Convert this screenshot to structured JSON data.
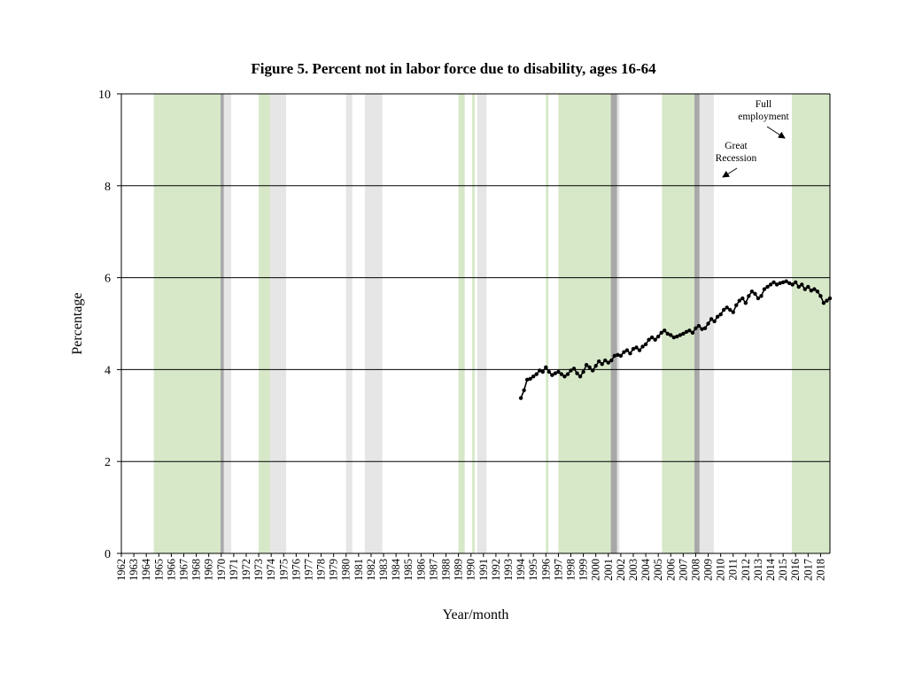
{
  "chart_data": {
    "type": "line",
    "title": "Figure 5. Percent not in labor force due to disability, ages 16-64",
    "xlabel": "Year/month",
    "ylabel": "Percentage",
    "ylim": [
      0,
      10
    ],
    "xlim": [
      1962,
      2018.75
    ],
    "y_ticks": [
      "0",
      "2",
      "4",
      "6",
      "8",
      "10"
    ],
    "x_tick_labels": [
      "1962",
      "1963",
      "1964",
      "1965",
      "1966",
      "1967",
      "1968",
      "1969",
      "1970",
      "1971",
      "1972",
      "1973",
      "1974",
      "1975",
      "1976",
      "1977",
      "1978",
      "1979",
      "1980",
      "1981",
      "1982",
      "1983",
      "1984",
      "1985",
      "1986",
      "1987",
      "1988",
      "1989",
      "1990",
      "1991",
      "1992",
      "1993",
      "1994",
      "1995",
      "1996",
      "1997",
      "1998",
      "1999",
      "2000",
      "2001",
      "2002",
      "2003",
      "2004",
      "2005",
      "2006",
      "2007",
      "2008",
      "2009",
      "2010",
      "2011",
      "2012",
      "2013",
      "2014",
      "2015",
      "2016",
      "2017",
      "2018"
    ],
    "grid": true,
    "legend": "none",
    "shaded_periods": {
      "full_employment": [
        [
          1964.6,
          1970.2
        ],
        [
          1973.0,
          1974.2
        ],
        [
          1989.0,
          1989.5
        ],
        [
          1990.1,
          1990.3
        ],
        [
          1996.0,
          1996.2
        ],
        [
          1997.0,
          2001.2
        ],
        [
          2005.3,
          2008.0
        ],
        [
          2015.7,
          2018.75
        ]
      ],
      "recession": [
        [
          1969.95,
          1970.8
        ],
        [
          1973.9,
          1975.2
        ],
        [
          1980.0,
          1980.5
        ],
        [
          1981.5,
          1982.9
        ],
        [
          1990.5,
          1991.25
        ],
        [
          2001.2,
          2001.9
        ],
        [
          2007.9,
          2009.45
        ]
      ],
      "overlap": [
        [
          1969.95,
          1970.2
        ],
        [
          2001.2,
          2001.7
        ],
        [
          2007.9,
          2008.3
        ]
      ]
    },
    "series": [
      {
        "points": [
          [
            1994.0,
            3.38
          ],
          [
            1994.25,
            3.55
          ],
          [
            1994.5,
            3.78
          ],
          [
            1994.75,
            3.8
          ],
          [
            1995.0,
            3.85
          ],
          [
            1995.25,
            3.9
          ],
          [
            1995.5,
            3.98
          ],
          [
            1995.75,
            3.95
          ],
          [
            1996.0,
            4.05
          ],
          [
            1996.25,
            3.95
          ],
          [
            1996.5,
            3.88
          ],
          [
            1996.75,
            3.92
          ],
          [
            1997.0,
            3.95
          ],
          [
            1997.25,
            3.9
          ],
          [
            1997.5,
            3.85
          ],
          [
            1997.75,
            3.9
          ],
          [
            1998.0,
            3.98
          ],
          [
            1998.25,
            4.02
          ],
          [
            1998.5,
            3.92
          ],
          [
            1998.75,
            3.85
          ],
          [
            1999.0,
            3.95
          ],
          [
            1999.25,
            4.1
          ],
          [
            1999.5,
            4.05
          ],
          [
            1999.75,
            3.98
          ],
          [
            2000.0,
            4.08
          ],
          [
            2000.25,
            4.18
          ],
          [
            2000.5,
            4.12
          ],
          [
            2000.75,
            4.2
          ],
          [
            2001.0,
            4.15
          ],
          [
            2001.25,
            4.2
          ],
          [
            2001.5,
            4.3
          ],
          [
            2001.75,
            4.32
          ],
          [
            2002.0,
            4.3
          ],
          [
            2002.25,
            4.38
          ],
          [
            2002.5,
            4.42
          ],
          [
            2002.75,
            4.35
          ],
          [
            2003.0,
            4.45
          ],
          [
            2003.25,
            4.48
          ],
          [
            2003.5,
            4.42
          ],
          [
            2003.75,
            4.5
          ],
          [
            2004.0,
            4.55
          ],
          [
            2004.25,
            4.65
          ],
          [
            2004.5,
            4.7
          ],
          [
            2004.75,
            4.65
          ],
          [
            2005.0,
            4.72
          ],
          [
            2005.25,
            4.8
          ],
          [
            2005.5,
            4.85
          ],
          [
            2005.75,
            4.78
          ],
          [
            2006.0,
            4.75
          ],
          [
            2006.25,
            4.7
          ],
          [
            2006.5,
            4.72
          ],
          [
            2006.75,
            4.75
          ],
          [
            2007.0,
            4.78
          ],
          [
            2007.25,
            4.82
          ],
          [
            2007.5,
            4.85
          ],
          [
            2007.75,
            4.8
          ],
          [
            2008.0,
            4.9
          ],
          [
            2008.25,
            4.95
          ],
          [
            2008.5,
            4.88
          ],
          [
            2008.75,
            4.9
          ],
          [
            2009.0,
            5.0
          ],
          [
            2009.25,
            5.1
          ],
          [
            2009.5,
            5.05
          ],
          [
            2009.75,
            5.15
          ],
          [
            2010.0,
            5.2
          ],
          [
            2010.25,
            5.3
          ],
          [
            2010.5,
            5.35
          ],
          [
            2010.75,
            5.3
          ],
          [
            2011.0,
            5.25
          ],
          [
            2011.25,
            5.4
          ],
          [
            2011.5,
            5.5
          ],
          [
            2011.75,
            5.55
          ],
          [
            2012.0,
            5.45
          ],
          [
            2012.25,
            5.6
          ],
          [
            2012.5,
            5.7
          ],
          [
            2012.75,
            5.65
          ],
          [
            2013.0,
            5.55
          ],
          [
            2013.25,
            5.6
          ],
          [
            2013.5,
            5.75
          ],
          [
            2013.75,
            5.8
          ],
          [
            2014.0,
            5.85
          ],
          [
            2014.25,
            5.9
          ],
          [
            2014.5,
            5.85
          ],
          [
            2014.75,
            5.88
          ],
          [
            2015.0,
            5.9
          ],
          [
            2015.25,
            5.92
          ],
          [
            2015.5,
            5.88
          ],
          [
            2015.75,
            5.85
          ],
          [
            2016.0,
            5.9
          ],
          [
            2016.25,
            5.8
          ],
          [
            2016.5,
            5.85
          ],
          [
            2016.75,
            5.75
          ],
          [
            2017.0,
            5.8
          ],
          [
            2017.25,
            5.72
          ],
          [
            2017.5,
            5.75
          ],
          [
            2017.75,
            5.7
          ],
          [
            2018.0,
            5.6
          ],
          [
            2018.25,
            5.45
          ],
          [
            2018.5,
            5.5
          ],
          [
            2018.75,
            5.55
          ]
        ]
      }
    ],
    "annotations": [
      {
        "lines": [
          "Full",
          "employment"
        ]
      },
      {
        "lines": [
          "Great",
          "Recession"
        ]
      }
    ]
  },
  "colors": {
    "full_employment": "#d6e8c8",
    "recession": "#e6e6e6",
    "overlap": "#a8a8a8",
    "line": "#000000",
    "grid": "#000000"
  }
}
